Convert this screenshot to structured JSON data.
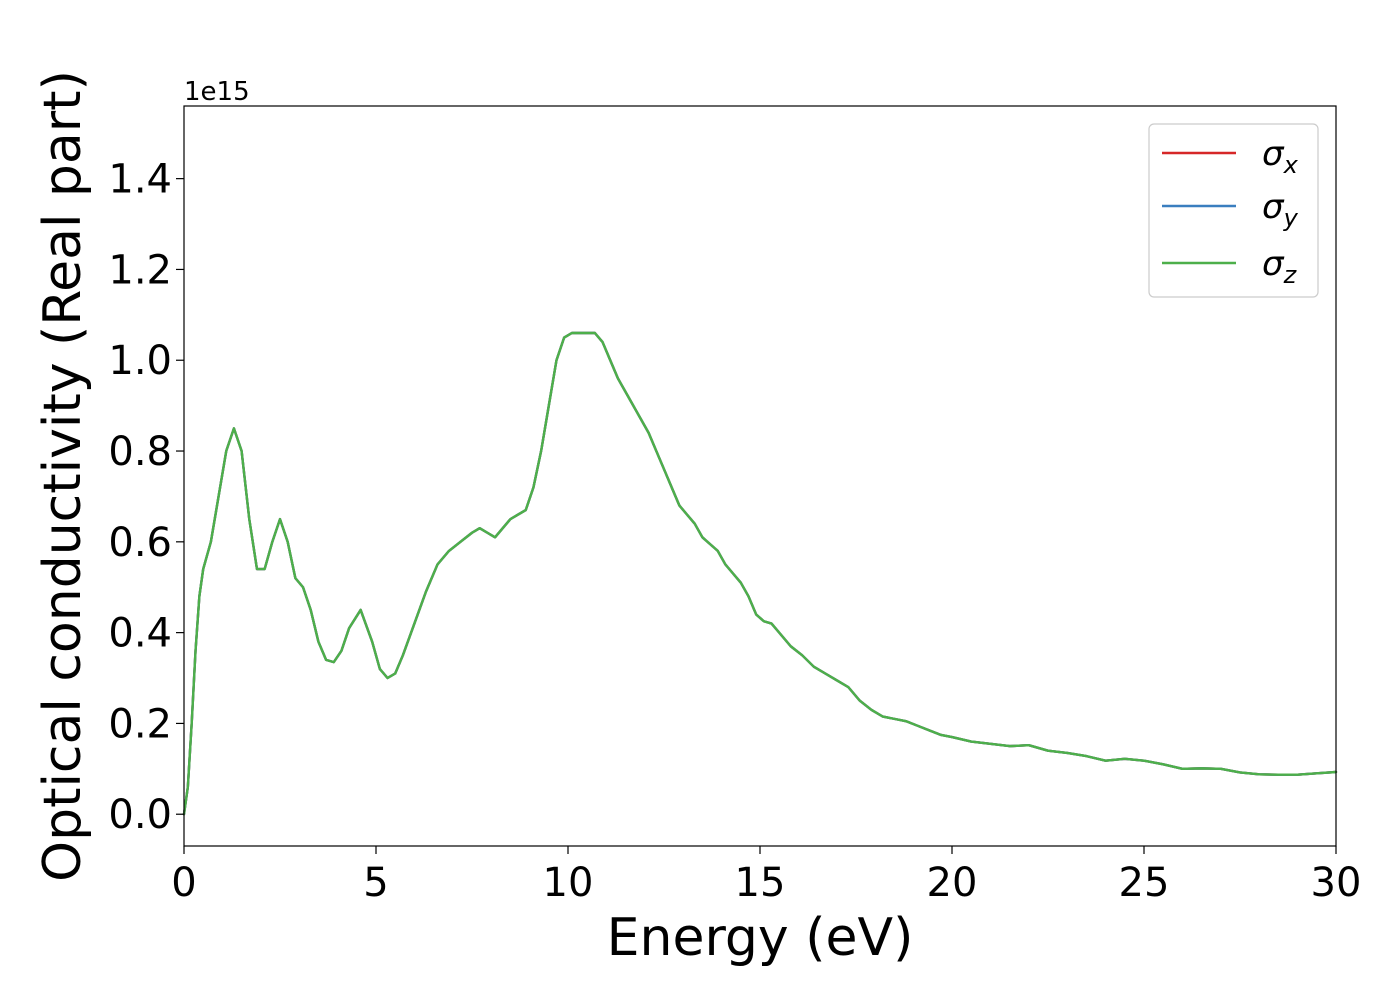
{
  "chart_data": {
    "type": "line",
    "title": "",
    "xlabel": "Energy (eV)",
    "ylabel": "Optical conductivity (Real part)",
    "y_offset_label": "1e15",
    "y_scale_factor": 1000000000000000.0,
    "xlim": [
      0,
      30
    ],
    "ylim": [
      -0.07,
      1.56
    ],
    "xticks": [
      0,
      5,
      10,
      15,
      20,
      25,
      30
    ],
    "xtick_labels": [
      "0",
      "5",
      "10",
      "15",
      "20",
      "25",
      "30"
    ],
    "yticks": [
      0.0,
      0.2,
      0.4,
      0.6,
      0.8,
      1.0,
      1.2,
      1.4
    ],
    "ytick_labels": [
      "0.0",
      "0.2",
      "0.4",
      "0.6",
      "0.8",
      "1.0",
      "1.2",
      "1.4"
    ],
    "grid": false,
    "legend_position": "top-right",
    "x": [
      0,
      0.1,
      0.2,
      0.3,
      0.4,
      0.5,
      0.7,
      0.9,
      1.1,
      1.3,
      1.5,
      1.7,
      1.9,
      2.1,
      2.3,
      2.5,
      2.7,
      2.9,
      3.1,
      3.3,
      3.5,
      3.7,
      3.9,
      4.1,
      4.3,
      4.6,
      4.9,
      5.1,
      5.3,
      5.5,
      5.7,
      6.0,
      6.3,
      6.6,
      6.9,
      7.2,
      7.5,
      7.7,
      7.9,
      8.1,
      8.3,
      8.5,
      8.7,
      8.9,
      9.1,
      9.3,
      9.5,
      9.7,
      9.9,
      10.1,
      10.3,
      10.5,
      10.7,
      10.9,
      11.1,
      11.3,
      11.5,
      11.7,
      11.9,
      12.1,
      12.3,
      12.5,
      12.7,
      12.9,
      13.1,
      13.3,
      13.5,
      13.7,
      13.9,
      14.1,
      14.3,
      14.5,
      14.7,
      14.9,
      15.1,
      15.3,
      15.5,
      15.8,
      16.1,
      16.4,
      16.7,
      17.0,
      17.3,
      17.6,
      17.9,
      18.2,
      18.5,
      18.8,
      19.1,
      19.4,
      19.7,
      20.0,
      20.5,
      21.0,
      21.5,
      22.0,
      22.5,
      23.0,
      23.5,
      24.0,
      24.5,
      25.0,
      25.5,
      26.0,
      26.5,
      27.0,
      27.5,
      28.0,
      28.5,
      29.0,
      29.5,
      30.0
    ],
    "series": [
      {
        "name": "σx",
        "color": "#d62728",
        "y": [
          0.0,
          0.06,
          0.2,
          0.36,
          0.48,
          0.54,
          0.6,
          0.7,
          0.8,
          0.85,
          0.8,
          0.65,
          0.54,
          0.54,
          0.6,
          0.65,
          0.6,
          0.52,
          0.5,
          0.45,
          0.38,
          0.34,
          0.335,
          0.36,
          0.41,
          0.45,
          0.38,
          0.32,
          0.3,
          0.31,
          0.35,
          0.42,
          0.49,
          0.55,
          0.58,
          0.6,
          0.62,
          0.63,
          0.62,
          0.61,
          0.63,
          0.65,
          0.66,
          0.67,
          0.72,
          0.8,
          0.9,
          1.0,
          1.05,
          1.06,
          1.06,
          1.06,
          1.06,
          1.04,
          1.0,
          0.96,
          0.93,
          0.9,
          0.87,
          0.84,
          0.8,
          0.76,
          0.72,
          0.68,
          0.66,
          0.64,
          0.61,
          0.595,
          0.58,
          0.55,
          0.53,
          0.51,
          0.48,
          0.44,
          0.425,
          0.42,
          0.4,
          0.37,
          0.35,
          0.325,
          0.31,
          0.295,
          0.28,
          0.25,
          0.23,
          0.215,
          0.21,
          0.205,
          0.195,
          0.185,
          0.175,
          0.17,
          0.16,
          0.155,
          0.15,
          0.152,
          0.14,
          0.135,
          0.128,
          0.118,
          0.122,
          0.118,
          0.11,
          0.1,
          0.101,
          0.1,
          0.092,
          0.088,
          0.087,
          0.087,
          0.09,
          0.093
        ]
      },
      {
        "name": "σy",
        "color": "#3a7ebf",
        "y": [
          0.0,
          0.06,
          0.2,
          0.36,
          0.48,
          0.54,
          0.6,
          0.7,
          0.8,
          0.85,
          0.8,
          0.65,
          0.54,
          0.54,
          0.6,
          0.65,
          0.6,
          0.52,
          0.5,
          0.45,
          0.38,
          0.34,
          0.335,
          0.36,
          0.41,
          0.45,
          0.38,
          0.32,
          0.3,
          0.31,
          0.35,
          0.42,
          0.49,
          0.55,
          0.58,
          0.6,
          0.62,
          0.63,
          0.62,
          0.61,
          0.63,
          0.65,
          0.66,
          0.67,
          0.72,
          0.8,
          0.9,
          1.0,
          1.05,
          1.06,
          1.06,
          1.06,
          1.06,
          1.04,
          1.0,
          0.96,
          0.93,
          0.9,
          0.87,
          0.84,
          0.8,
          0.76,
          0.72,
          0.68,
          0.66,
          0.64,
          0.61,
          0.595,
          0.58,
          0.55,
          0.53,
          0.51,
          0.48,
          0.44,
          0.425,
          0.42,
          0.4,
          0.37,
          0.35,
          0.325,
          0.31,
          0.295,
          0.28,
          0.25,
          0.23,
          0.215,
          0.21,
          0.205,
          0.195,
          0.185,
          0.175,
          0.17,
          0.16,
          0.155,
          0.15,
          0.152,
          0.14,
          0.135,
          0.128,
          0.118,
          0.122,
          0.118,
          0.11,
          0.1,
          0.101,
          0.1,
          0.092,
          0.088,
          0.087,
          0.087,
          0.09,
          0.093
        ]
      },
      {
        "name": "σz",
        "color": "#4daf4a",
        "y": [
          0.0,
          0.06,
          0.2,
          0.36,
          0.48,
          0.54,
          0.6,
          0.7,
          0.8,
          0.85,
          0.8,
          0.65,
          0.54,
          0.54,
          0.6,
          0.65,
          0.6,
          0.52,
          0.5,
          0.45,
          0.38,
          0.34,
          0.335,
          0.36,
          0.41,
          0.45,
          0.38,
          0.32,
          0.3,
          0.31,
          0.35,
          0.42,
          0.49,
          0.55,
          0.58,
          0.6,
          0.62,
          0.63,
          0.62,
          0.61,
          0.63,
          0.65,
          0.66,
          0.67,
          0.72,
          0.8,
          0.9,
          1.0,
          1.05,
          1.06,
          1.06,
          1.06,
          1.06,
          1.04,
          1.0,
          0.96,
          0.93,
          0.9,
          0.87,
          0.84,
          0.8,
          0.76,
          0.72,
          0.68,
          0.66,
          0.64,
          0.61,
          0.595,
          0.58,
          0.55,
          0.53,
          0.51,
          0.48,
          0.44,
          0.425,
          0.42,
          0.4,
          0.37,
          0.35,
          0.325,
          0.31,
          0.295,
          0.28,
          0.25,
          0.23,
          0.215,
          0.21,
          0.205,
          0.195,
          0.185,
          0.175,
          0.17,
          0.16,
          0.155,
          0.15,
          0.152,
          0.14,
          0.135,
          0.128,
          0.118,
          0.122,
          0.118,
          0.11,
          0.1,
          0.101,
          0.1,
          0.092,
          0.088,
          0.087,
          0.087,
          0.09,
          0.093
        ]
      }
    ]
  }
}
